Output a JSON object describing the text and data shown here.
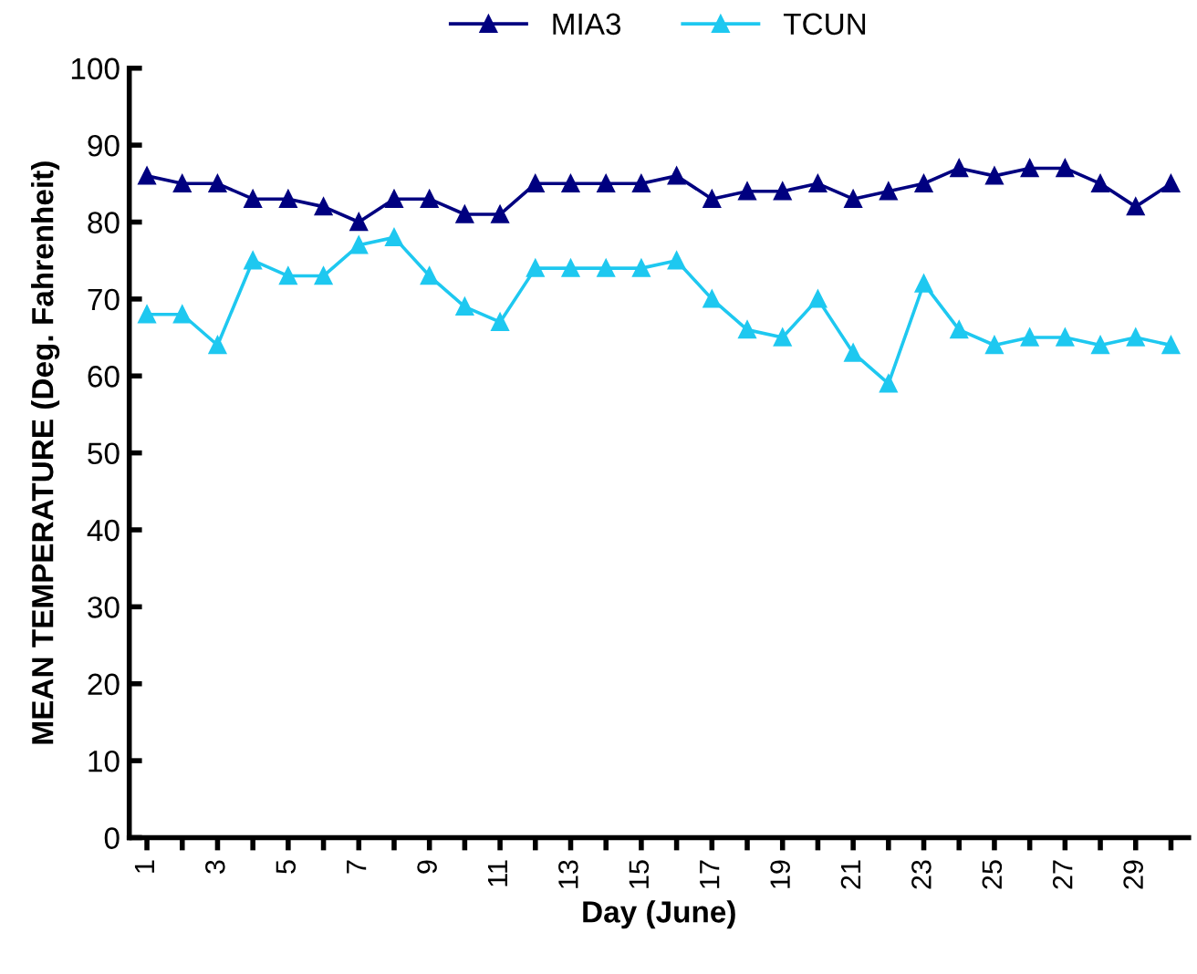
{
  "chart_data": {
    "type": "line",
    "xlabel": "Day (June)",
    "ylabel": "MEAN TEMPERATURE (Deg. Fahrenheit)",
    "categories": [
      "1",
      null,
      "3",
      null,
      "5",
      null,
      "7",
      null,
      "9",
      null,
      "11",
      null,
      "13",
      null,
      "15",
      null,
      "17",
      null,
      "19",
      null,
      "21",
      null,
      "23",
      null,
      "25",
      null,
      "27",
      null,
      "29",
      null
    ],
    "series": [
      {
        "name": "MIA3",
        "color": "#000080",
        "values": [
          86,
          85,
          85,
          83,
          83,
          82,
          80,
          83,
          83,
          81,
          81,
          85,
          85,
          85,
          85,
          86,
          83,
          84,
          84,
          85,
          83,
          84,
          85,
          87,
          86,
          87,
          87,
          85,
          82,
          85
        ]
      },
      {
        "name": "TCUN",
        "color": "#1ec8f0",
        "values": [
          68,
          68,
          64,
          75,
          73,
          73,
          77,
          78,
          73,
          69,
          67,
          74,
          74,
          74,
          74,
          75,
          70,
          66,
          65,
          70,
          63,
          59,
          72,
          66,
          64,
          65,
          65,
          64,
          65,
          64
        ]
      }
    ],
    "ylim": [
      0,
      100
    ],
    "yticks": [
      0,
      10,
      20,
      30,
      40,
      50,
      60,
      70,
      80,
      90,
      100
    ],
    "grid": false,
    "legend": "top",
    "marker": "triangle",
    "line_style": "solid"
  }
}
